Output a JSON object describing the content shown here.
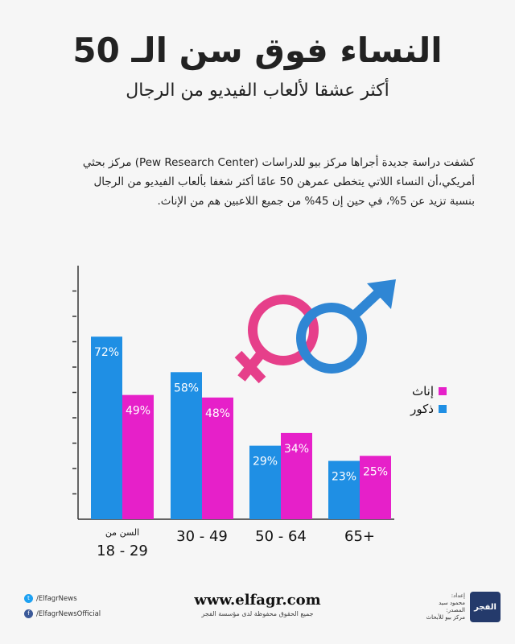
{
  "header": {
    "title": "النساء فوق سن الـ 50",
    "subtitle": "أكثر عشقا لألعاب الفيديو من الرجال"
  },
  "intro_text": "كشفت دراسة جديدة أجراها مركز بيو للدراسات (Pew Research Center) مركز بحثي أمريكي،أن النساء اللاتي يتخطى عمرهن 50 عامًا أكثر شغفا بألعاب الفيديو من الرجال بنسبة تزيد عن 5%، في حين إن 45% من جميع اللاعبين هم من الإناث.",
  "colors": {
    "male": "#1f8fe4",
    "female": "#e620c9",
    "axis": "#333333",
    "male_symbol": "#2f86d4",
    "female_symbol": "#e63f8a"
  },
  "chart_data": {
    "type": "bar",
    "categories": [
      "السن من 18 - 29",
      "30 - 49",
      "50 - 64",
      "65+"
    ],
    "category_lines": [
      [
        "السن من",
        "18 - 29"
      ],
      [
        "30 - 49"
      ],
      [
        "50 - 64"
      ],
      [
        "65+"
      ]
    ],
    "series": [
      {
        "name": "ذكور",
        "values": [
          72,
          58,
          29,
          23
        ]
      },
      {
        "name": "إناث",
        "values": [
          49,
          48,
          34,
          25
        ]
      }
    ],
    "value_labels": [
      [
        "72%",
        "58%",
        "29%",
        "23%"
      ],
      [
        "49%",
        "48%",
        "34%",
        "25%"
      ]
    ],
    "ylim": [
      0,
      100
    ],
    "y_ticks": [
      10,
      20,
      30,
      40,
      50,
      60,
      70,
      80,
      90
    ],
    "legend_position": "right",
    "grid": false
  },
  "legend": {
    "female_label": "إناث",
    "male_label": "ذكور"
  },
  "footer": {
    "twitter": "/ElfagrNews",
    "facebook": "/ElfagrNewsOfficial",
    "url": "www.elfagr.com",
    "rights": "جميع الحقوق محفوظة لدى مؤسسة الفجر",
    "credit_prepared": "إعداد:",
    "credit_name": "محمود سيد",
    "credit_source_label": "المصدر:",
    "credit_source": "مركز بيو للأبحاث",
    "logo_text": "الفجر"
  }
}
